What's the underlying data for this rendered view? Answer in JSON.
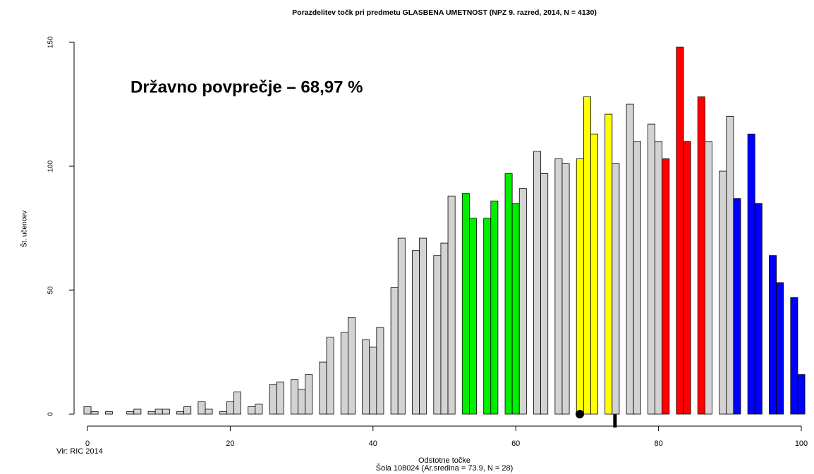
{
  "chart_data": {
    "type": "histogram",
    "title": "Porazdelitev točk pri predmetu GLASBENA UMETNOST (NPZ 9. razred, 2014, N = 4130)",
    "annotation": "Državno povprečje – 68,97 %",
    "xlabel": "Odstotne točke",
    "subtitle": "Šola 108024 (Ar.sredina = 73.9, N = 28)",
    "source": "Vir: RIC 2014",
    "ylabel": "Št. učencev",
    "xlim": [
      0,
      100
    ],
    "xticks": [
      0,
      20,
      40,
      60,
      80,
      100
    ],
    "ylim": [
      0,
      150
    ],
    "yticks": [
      0,
      50,
      100,
      150
    ],
    "bins": [
      -0.5,
      0.5,
      1.5,
      2.5,
      3.5,
      4.5,
      5.5,
      6.5,
      7.5,
      8.5,
      9.5,
      10.5,
      11.5,
      12.5,
      13.5,
      14.5,
      15.5,
      16.5,
      17.5,
      18.5,
      19.5,
      20.5,
      21.5,
      22.5,
      23.5,
      24.5,
      25.5,
      26.5,
      27.5,
      28.5,
      29.5,
      30.5,
      31.5,
      32.5,
      33.5,
      34.5,
      35.5,
      36.5,
      37.5,
      38.5,
      39.5,
      40.5,
      41.5,
      42.5,
      43.5,
      44.5,
      45.5,
      46.5,
      47.5,
      48.5,
      49.5,
      50.5,
      51.5,
      52.5,
      53.5,
      54.5,
      55.5,
      56.5,
      57.5,
      58.5,
      59.5,
      60.5,
      61.5,
      62.5,
      63.5,
      64.5,
      65.5,
      66.5,
      67.5,
      68.5,
      69.5,
      70.5,
      71.5,
      72.5,
      73.5,
      74.5,
      75.5,
      76.5,
      77.5,
      78.5,
      79.5,
      80.5,
      81.5,
      82.5,
      83.5,
      84.5,
      85.5,
      86.5,
      87.5,
      88.5,
      89.5,
      90.5,
      91.5,
      92.5,
      93.5,
      94.5,
      95.5,
      96.5,
      97.5,
      98.5,
      99.5,
      100.5
    ],
    "counts": [
      3,
      1,
      0,
      1,
      0,
      0,
      1,
      2,
      0,
      1,
      2,
      2,
      0,
      1,
      3,
      0,
      5,
      2,
      0,
      1,
      5,
      9,
      0,
      3,
      4,
      0,
      12,
      13,
      0,
      14,
      10,
      16,
      0,
      21,
      31,
      0,
      33,
      39,
      0,
      30,
      27,
      35,
      0,
      51,
      71,
      0,
      66,
      71,
      0,
      64,
      69,
      88,
      0,
      89,
      79,
      0,
      79,
      86,
      0,
      97,
      85,
      91,
      0,
      106,
      97,
      0,
      103,
      101,
      0,
      103,
      128,
      113,
      0,
      121,
      101,
      0,
      125,
      110,
      0,
      117,
      110,
      103,
      0,
      148,
      110,
      0,
      128,
      110,
      0,
      98,
      120,
      87,
      0,
      113,
      85,
      0,
      64,
      53,
      0,
      47,
      16
    ],
    "colors": [
      "#d3d3d3",
      "#d3d3d3",
      "#d3d3d3",
      "#d3d3d3",
      "#d3d3d3",
      "#d3d3d3",
      "#d3d3d3",
      "#d3d3d3",
      "#d3d3d3",
      "#d3d3d3",
      "#d3d3d3",
      "#d3d3d3",
      "#d3d3d3",
      "#d3d3d3",
      "#d3d3d3",
      "#d3d3d3",
      "#d3d3d3",
      "#d3d3d3",
      "#d3d3d3",
      "#d3d3d3",
      "#d3d3d3",
      "#d3d3d3",
      "#d3d3d3",
      "#d3d3d3",
      "#d3d3d3",
      "#d3d3d3",
      "#d3d3d3",
      "#d3d3d3",
      "#d3d3d3",
      "#d3d3d3",
      "#d3d3d3",
      "#d3d3d3",
      "#d3d3d3",
      "#d3d3d3",
      "#d3d3d3",
      "#d3d3d3",
      "#d3d3d3",
      "#d3d3d3",
      "#d3d3d3",
      "#d3d3d3",
      "#d3d3d3",
      "#d3d3d3",
      "#d3d3d3",
      "#d3d3d3",
      "#d3d3d3",
      "#d3d3d3",
      "#d3d3d3",
      "#d3d3d3",
      "#d3d3d3",
      "#d3d3d3",
      "#d3d3d3",
      "#d3d3d3",
      "#d3d3d3",
      "#00ee00",
      "#00ee00",
      "#d3d3d3",
      "#00ee00",
      "#00ee00",
      "#d3d3d3",
      "#00ee00",
      "#00ee00",
      "#d3d3d3",
      "#d3d3d3",
      "#d3d3d3",
      "#d3d3d3",
      "#d3d3d3",
      "#d3d3d3",
      "#d3d3d3",
      "#d3d3d3",
      "#ffff00",
      "#ffff00",
      "#ffff00",
      "#d3d3d3",
      "#ffff00",
      "#d3d3d3",
      "#d3d3d3",
      "#d3d3d3",
      "#d3d3d3",
      "#d3d3d3",
      "#d3d3d3",
      "#d3d3d3",
      "#ff0000",
      "#d3d3d3",
      "#ff0000",
      "#ff0000",
      "#d3d3d3",
      "#ff0000",
      "#d3d3d3",
      "#d3d3d3",
      "#d3d3d3",
      "#d3d3d3",
      "#0000ff",
      "#d3d3d3",
      "#0000ff",
      "#0000ff",
      "#d3d3d3",
      "#0000ff",
      "#0000ff",
      "#d3d3d3",
      "#0000ff",
      "#0000ff"
    ],
    "markers": [
      {
        "value": 68.97,
        "shape": "dot"
      },
      {
        "value": 73.9,
        "shape": "bar"
      }
    ]
  }
}
